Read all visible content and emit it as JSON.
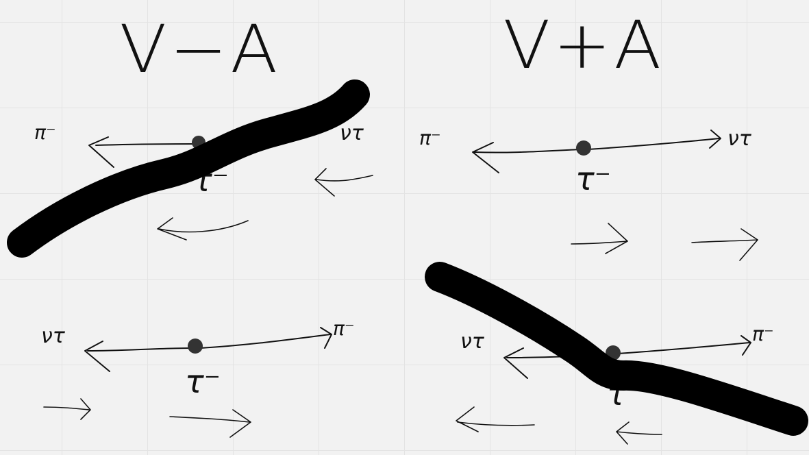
{
  "titles": {
    "left": "V−A",
    "right": "V+A"
  },
  "labels": {
    "neutrino": "ντ",
    "pion": "π⁻",
    "tau": "τ⁻"
  }
}
